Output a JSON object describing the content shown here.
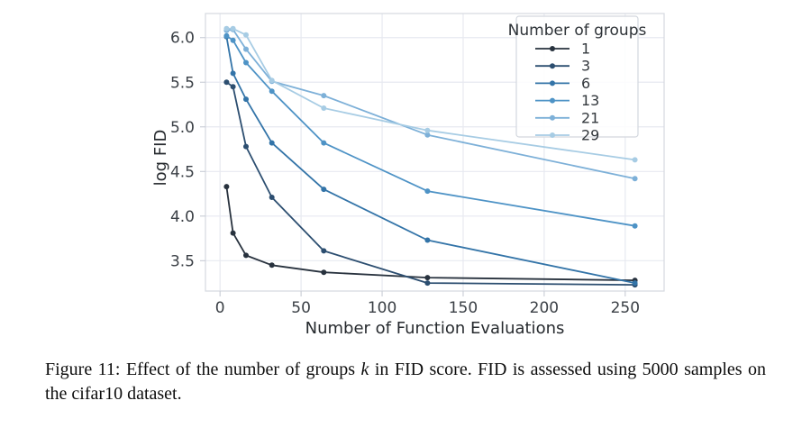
{
  "chart_data": {
    "type": "line",
    "title": "",
    "xlabel": "Number of Function Evaluations",
    "ylabel": "log FID",
    "x": [
      4,
      8,
      16,
      32,
      64,
      128,
      256
    ],
    "xticks": [
      0,
      50,
      100,
      150,
      200,
      250
    ],
    "yticks": [
      3.5,
      4.0,
      4.5,
      5.0,
      5.5,
      6.0
    ],
    "xlim": [
      -9,
      274
    ],
    "ylim": [
      3.16,
      6.27
    ],
    "grid": true,
    "legend": {
      "title": "Number of groups",
      "position": "upper right"
    },
    "series": [
      {
        "name": "1",
        "color": "#28323e",
        "values": [
          4.33,
          3.81,
          3.56,
          3.45,
          3.37,
          3.31,
          3.28
        ]
      },
      {
        "name": "3",
        "color": "#2c4e70",
        "values": [
          5.5,
          5.45,
          4.78,
          4.21,
          3.61,
          3.25,
          3.23
        ]
      },
      {
        "name": "6",
        "color": "#3374a8",
        "values": [
          6.01,
          5.6,
          5.31,
          4.82,
          4.3,
          3.73,
          3.25
        ]
      },
      {
        "name": "13",
        "color": "#4e93c6",
        "values": [
          6.02,
          5.97,
          5.72,
          5.4,
          4.82,
          4.28,
          3.89
        ]
      },
      {
        "name": "21",
        "color": "#7db0d8",
        "values": [
          6.08,
          6.09,
          5.87,
          5.51,
          5.35,
          4.91,
          4.42
        ]
      },
      {
        "name": "29",
        "color": "#a7cce4",
        "values": [
          6.1,
          6.1,
          6.03,
          5.52,
          5.21,
          4.96,
          4.63
        ]
      }
    ],
    "colors": {
      "grid": "#e7e9f0",
      "frame": "#d6d9e0",
      "tick": "#c8ccd5"
    }
  },
  "caption": {
    "part1": "Figure 11: Effect of the number of groups ",
    "k_italic": "k",
    "part2": " in FID score. FID is assessed using 5000 samples on the cifar10 dataset."
  }
}
